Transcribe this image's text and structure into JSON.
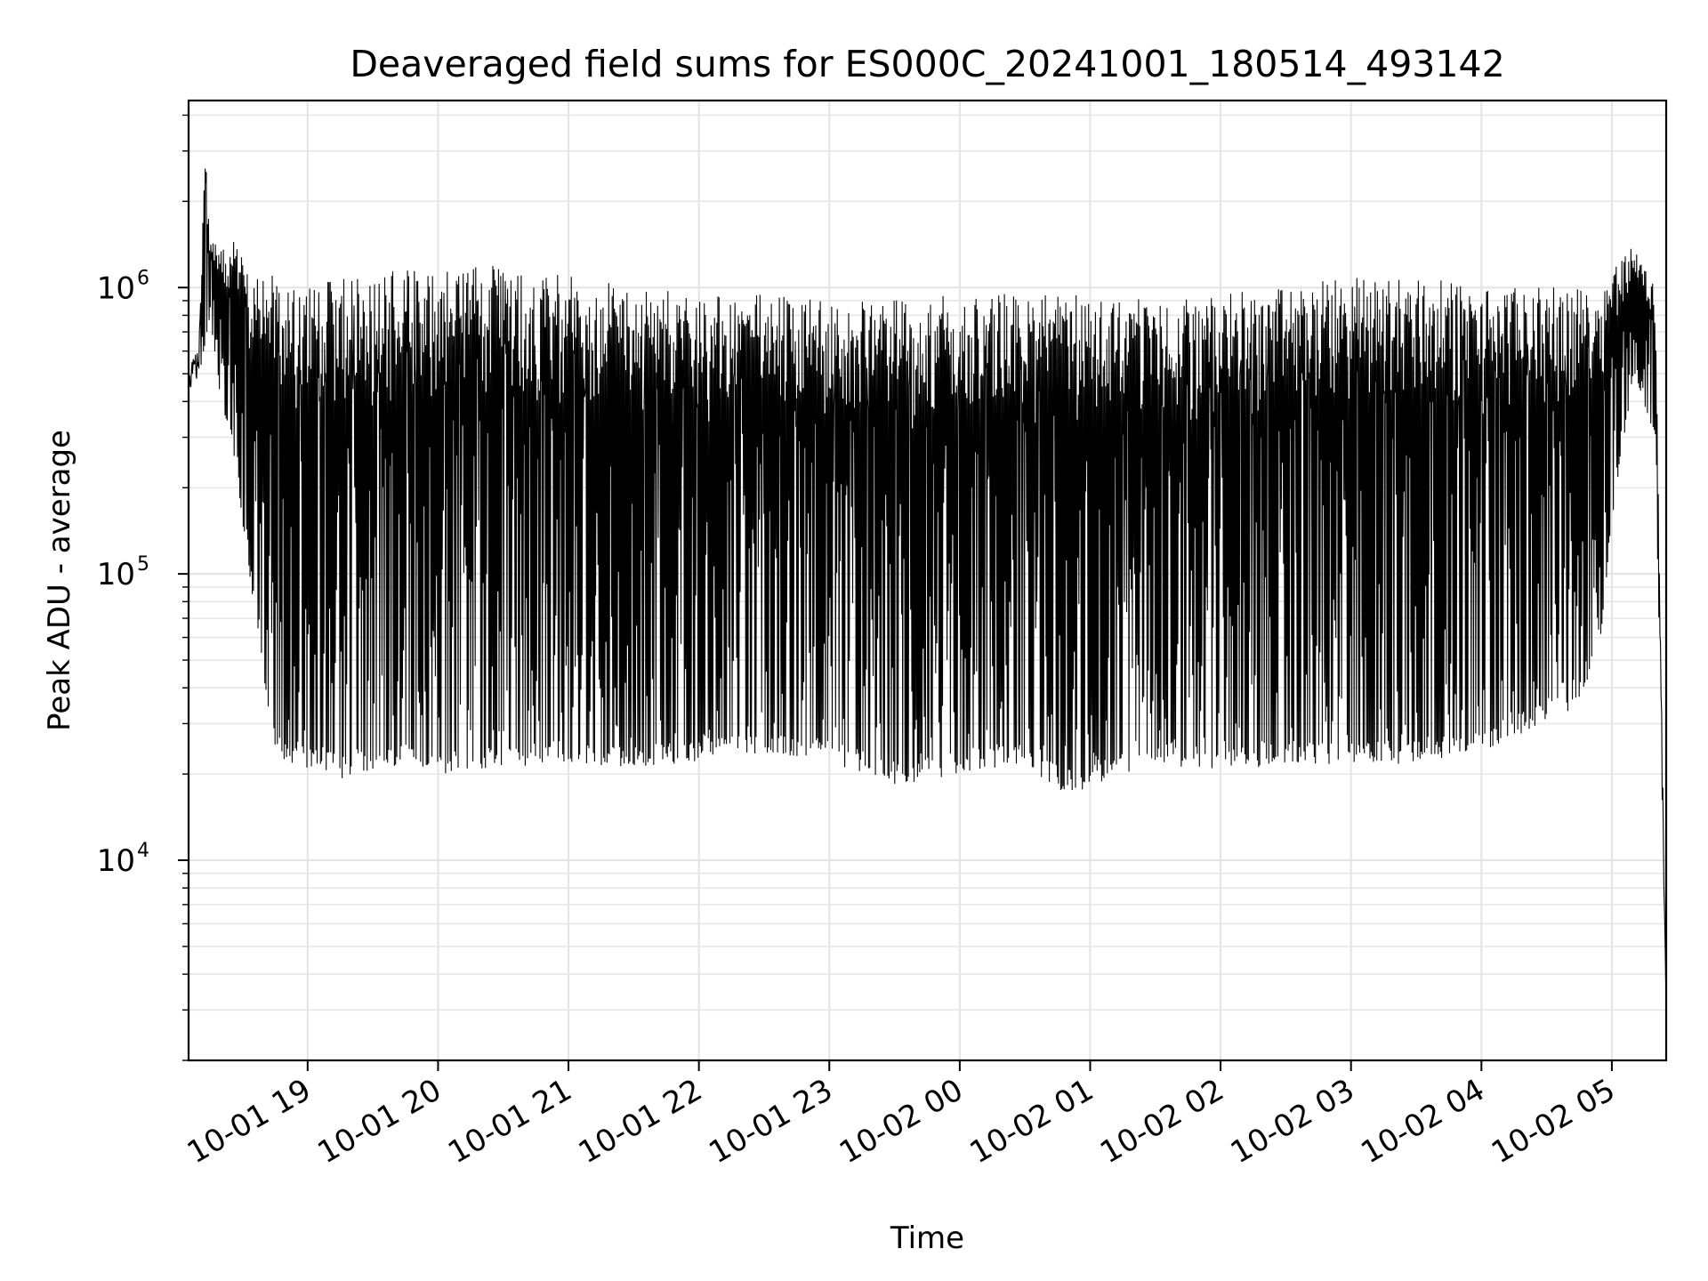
{
  "chart_data": {
    "type": "line",
    "title": "Deaveraged field sums for ES000C_20241001_180514_493142",
    "xlabel": "Time",
    "ylabel": "Peak ADU - average",
    "yscale": "log",
    "ylim": [
      2000,
      4500000
    ],
    "xlim": [
      "2024-10-01 18:05:14",
      "2024-10-02 05:25:00"
    ],
    "x_ticks": [
      "10-01 19",
      "10-01 20",
      "10-01 21",
      "10-01 22",
      "10-01 23",
      "10-02 00",
      "10-02 01",
      "10-02 02",
      "10-02 03",
      "10-02 04",
      "10-02 05"
    ],
    "y_ticks": [
      {
        "base": "10",
        "exp": "4",
        "value": 10000
      },
      {
        "base": "10",
        "exp": "5",
        "value": 100000
      },
      {
        "base": "10",
        "exp": "6",
        "value": 1000000
      }
    ],
    "grid": true,
    "series": [
      {
        "color": "#000000",
        "x": [
          "2024-10-01 18:05",
          "2024-10-01 18:10",
          "2024-10-01 18:13",
          "2024-10-01 18:15",
          "2024-10-01 18:20",
          "2024-10-01 18:25",
          "2024-10-01 18:30",
          "2024-10-01 18:35",
          "2024-10-01 18:40",
          "2024-10-01 18:45",
          "2024-10-01 18:50",
          "2024-10-01 19:00",
          "2024-10-01 19:15",
          "2024-10-01 19:30",
          "2024-10-01 19:45",
          "2024-10-01 20:00",
          "2024-10-01 20:30",
          "2024-10-01 21:00",
          "2024-10-01 21:30",
          "2024-10-01 22:00",
          "2024-10-01 22:30",
          "2024-10-01 23:00",
          "2024-10-01 23:30",
          "2024-10-02 00:00",
          "2024-10-02 00:30",
          "2024-10-02 00:50",
          "2024-10-02 01:00",
          "2024-10-02 01:30",
          "2024-10-02 02:00",
          "2024-10-02 02:30",
          "2024-10-02 03:00",
          "2024-10-02 03:30",
          "2024-10-02 04:00",
          "2024-10-02 04:30",
          "2024-10-02 04:45",
          "2024-10-02 04:55",
          "2024-10-02 05:00",
          "2024-10-02 05:10",
          "2024-10-02 05:20",
          "2024-10-02 05:25"
        ],
        "upper": [
          500000,
          650000,
          3200000,
          1500000,
          1400000,
          1500000,
          1300000,
          1000000,
          1200000,
          1100000,
          1000000,
          1100000,
          1100000,
          1150000,
          1150000,
          1150000,
          1200000,
          1100000,
          1000000,
          950000,
          950000,
          900000,
          900000,
          950000,
          950000,
          950000,
          950000,
          900000,
          950000,
          1000000,
          1100000,
          1100000,
          1000000,
          1000000,
          1000000,
          1000000,
          1200000,
          1400000,
          1000000,
          3000
        ],
        "lower": [
          400000,
          500000,
          600000,
          800000,
          400000,
          300000,
          150000,
          80000,
          40000,
          25000,
          22000,
          21000,
          19000,
          20000,
          22000,
          20000,
          21000,
          22000,
          21000,
          22000,
          23000,
          22000,
          18000,
          20000,
          22000,
          16000,
          18000,
          22000,
          20000,
          22000,
          21000,
          22000,
          24000,
          30000,
          35000,
          60000,
          150000,
          500000,
          300000,
          3000
        ]
      }
    ]
  }
}
